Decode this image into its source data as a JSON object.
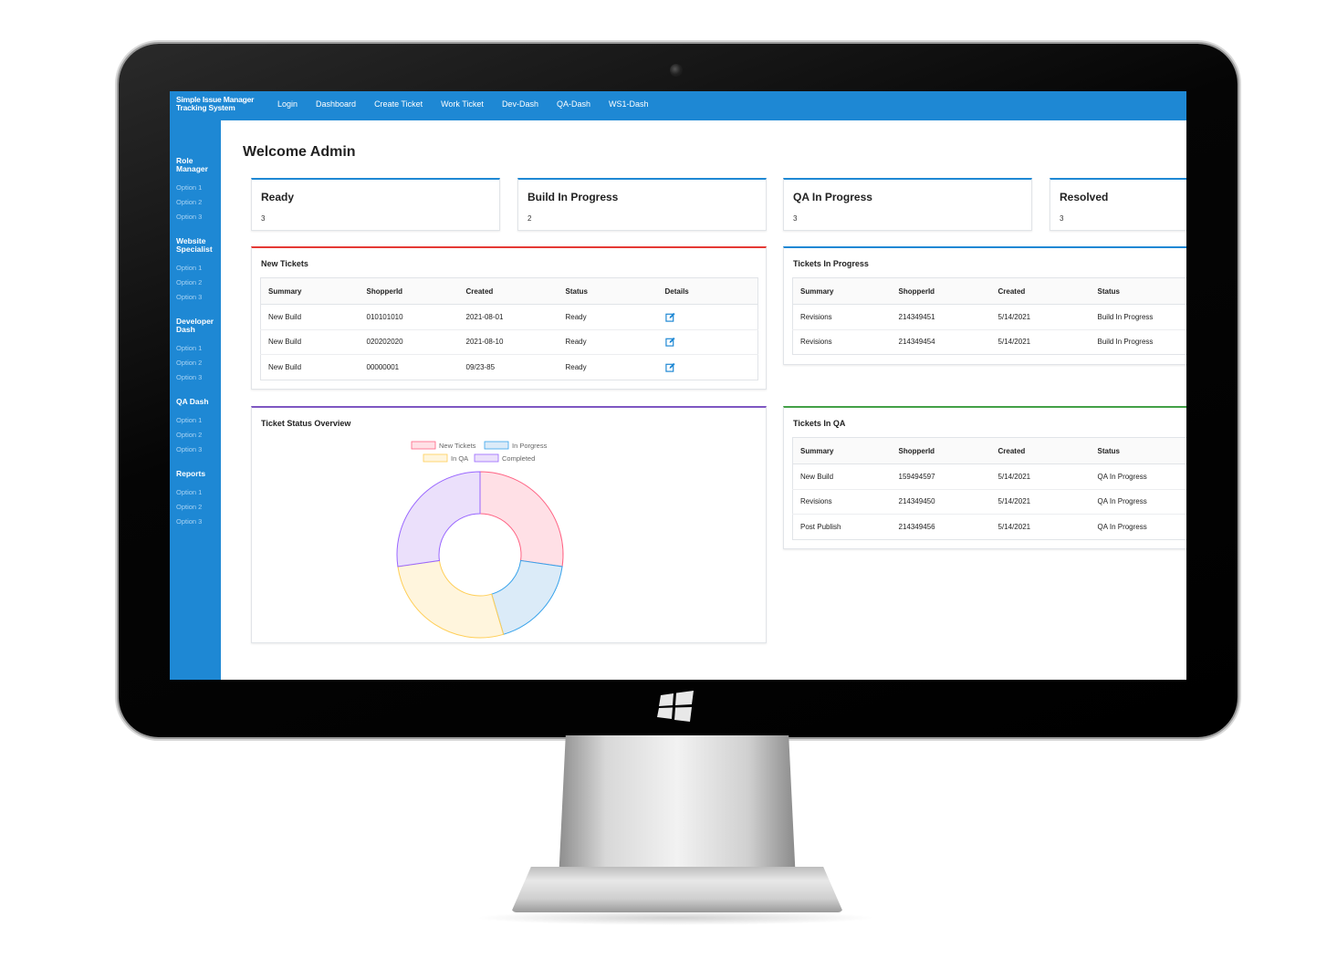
{
  "app": {
    "brand": "Simple Issue Manager Tracking System",
    "nav": [
      "Login",
      "Dashboard",
      "Create Ticket",
      "Work Ticket",
      "Dev-Dash",
      "QA-Dash",
      "WS1-Dash"
    ]
  },
  "sidebar": {
    "groups": [
      {
        "title": "Role Manager",
        "options": [
          "Option 1",
          "Option 2",
          "Option 3"
        ]
      },
      {
        "title": "Website Specialist",
        "options": [
          "Option 1",
          "Option 2",
          "Option 3"
        ]
      },
      {
        "title": "Developer Dash",
        "options": [
          "Option 1",
          "Option 2",
          "Option 3"
        ]
      },
      {
        "title": "QA Dash",
        "options": [
          "Option 1",
          "Option 2",
          "Option 3"
        ]
      },
      {
        "title": "Reports",
        "options": [
          "Option 1",
          "Option 2",
          "Option 3"
        ]
      }
    ]
  },
  "main": {
    "welcome": "Welcome Admin",
    "stats": [
      {
        "title": "Ready",
        "value": "3"
      },
      {
        "title": "Build In Progress",
        "value": "2"
      },
      {
        "title": "QA In Progress",
        "value": "3"
      },
      {
        "title": "Resolved",
        "value": "3"
      }
    ],
    "new_tickets": {
      "title": "New Tickets",
      "columns": [
        "Summary",
        "ShopperId",
        "Created",
        "Status",
        "Details"
      ],
      "rows": [
        [
          "New Build",
          "010101010",
          "2021-08-01",
          "Ready"
        ],
        [
          "New Build",
          "020202020",
          "2021-08-10",
          "Ready"
        ],
        [
          "New Build",
          "00000001",
          "09/23-85",
          "Ready"
        ]
      ],
      "accent": "#e53935"
    },
    "in_progress": {
      "title": "Tickets In Progress",
      "columns": [
        "Summary",
        "ShopperId",
        "Created",
        "Status"
      ],
      "rows": [
        [
          "Revisions",
          "214349451",
          "5/14/2021",
          "Build In Progress"
        ],
        [
          "Revisions",
          "214349454",
          "5/14/2021",
          "Build In Progress"
        ]
      ],
      "accent": "#1e88d4"
    },
    "in_qa": {
      "title": "Tickets In QA",
      "columns": [
        "Summary",
        "ShopperId",
        "Created",
        "Status"
      ],
      "rows": [
        [
          "New Build",
          "159494597",
          "5/14/2021",
          "QA In Progress"
        ],
        [
          "Revisions",
          "214349450",
          "5/14/2021",
          "QA In Progress"
        ],
        [
          "Post Publish",
          "214349456",
          "5/14/2021",
          "QA In Progress"
        ]
      ],
      "accent": "#43a047"
    },
    "overview": {
      "title": "Ticket Status Overview",
      "accent": "#7e57c2"
    }
  },
  "chart_data": {
    "type": "pie",
    "title": "",
    "categories": [
      "New Tickets",
      "In Porgress",
      "In QA",
      "Completed"
    ],
    "values": [
      3,
      2,
      3,
      3
    ],
    "colors": {
      "fill": [
        "#ffe0e6",
        "#dbebf8",
        "#fff5dd",
        "#ebe0fb"
      ],
      "stroke": [
        "#ff6384",
        "#36a2eb",
        "#ffce56",
        "#9966ff"
      ]
    },
    "legend": "top"
  }
}
